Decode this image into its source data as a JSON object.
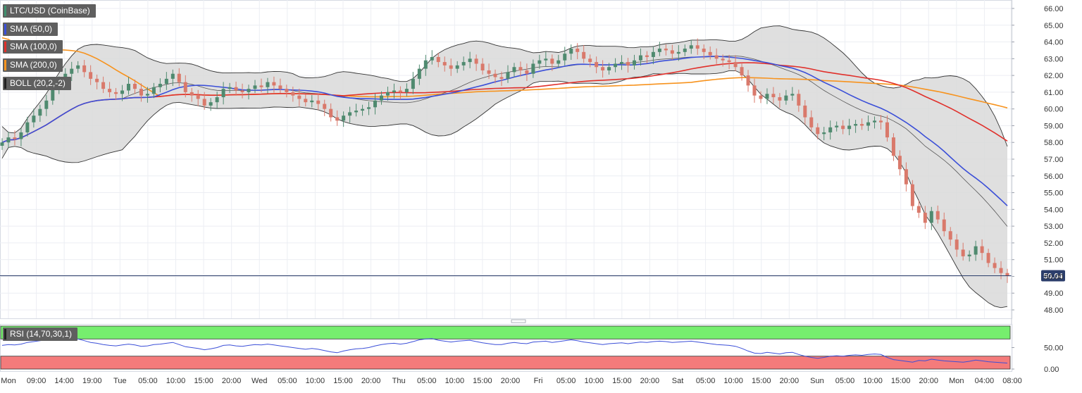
{
  "chart_data": {
    "type": "candlestick",
    "symbol": "LTC/USD (CoinBase)",
    "y_axis": {
      "min": 48,
      "max": 66,
      "ticks": [
        "66.00",
        "65.00",
        "64.00",
        "63.00",
        "62.00",
        "61.00",
        "60.00",
        "59.00",
        "58.00",
        "57.00",
        "56.00",
        "55.00",
        "54.00",
        "53.00",
        "52.00",
        "51.00",
        "50.00",
        "49.00",
        "48.00"
      ]
    },
    "x_axis": {
      "ticks": [
        "Mon",
        "09:00",
        "14:00",
        "19:00",
        "Tue",
        "05:00",
        "10:00",
        "15:00",
        "20:00",
        "Wed",
        "05:00",
        "10:00",
        "15:00",
        "20:00",
        "Thu",
        "05:00",
        "10:00",
        "15:00",
        "20:00",
        "Fri",
        "05:00",
        "10:00",
        "15:00",
        "20:00",
        "Sat",
        "05:00",
        "10:00",
        "15:00",
        "20:00",
        "Sun",
        "05:00",
        "10:00",
        "15:00",
        "20:00",
        "Mon",
        "04:00",
        "08:00"
      ]
    },
    "current_price": {
      "label": "50.04",
      "value": 50.04,
      "color": "#2c3e6b"
    },
    "legend": [
      {
        "label": "SMA (50,0)",
        "color": "#3b4fd8"
      },
      {
        "label": "SMA (100,0)",
        "color": "#e0302b"
      },
      {
        "label": "SMA (200,0)",
        "color": "#f7931e"
      },
      {
        "label": "BOLL (20,2,-2)",
        "color": "#222222"
      }
    ],
    "series": {
      "close": [
        58.0,
        58.3,
        58.2,
        58.6,
        59.2,
        59.6,
        60.0,
        60.5,
        61.2,
        61.7,
        62.1,
        62.4,
        62.6,
        62.2,
        61.8,
        61.6,
        61.2,
        61.0,
        60.9,
        61.1,
        61.5,
        61.2,
        60.8,
        60.9,
        61.3,
        61.5,
        61.8,
        62.1,
        61.6,
        61.0,
        60.8,
        60.6,
        60.2,
        60.4,
        60.7,
        61.2,
        61.3,
        61.1,
        61.0,
        61.2,
        61.4,
        61.3,
        61.6,
        61.4,
        61.2,
        61.0,
        60.8,
        60.6,
        60.4,
        60.5,
        60.3,
        60.0,
        59.5,
        59.3,
        59.6,
        59.8,
        59.9,
        60.0,
        60.1,
        60.5,
        60.8,
        61.0,
        61.1,
        61.0,
        61.2,
        61.8,
        62.4,
        62.9,
        63.1,
        62.8,
        62.6,
        62.4,
        62.6,
        62.8,
        63.0,
        62.7,
        62.3,
        62.1,
        61.9,
        61.8,
        62.2,
        62.5,
        62.3,
        62.1,
        62.7,
        62.9,
        63.0,
        62.7,
        62.9,
        63.3,
        63.6,
        63.4,
        63.0,
        62.8,
        62.5,
        62.3,
        62.5,
        62.7,
        62.8,
        62.6,
        62.9,
        63.2,
        63.1,
        63.4,
        63.6,
        63.5,
        63.3,
        63.4,
        63.6,
        63.8,
        63.6,
        63.4,
        63.2,
        63.0,
        62.9,
        62.8,
        62.5,
        62.0,
        61.4,
        60.8,
        60.6,
        60.9,
        60.7,
        60.5,
        60.8,
        60.9,
        60.2,
        59.5,
        58.9,
        58.5,
        58.6,
        58.9,
        59.0,
        58.8,
        59.0,
        59.1,
        59.0,
        59.2,
        59.3,
        59.2,
        58.3,
        57.2,
        56.4,
        55.5,
        54.2,
        53.8,
        53.2,
        53.9,
        53.4,
        52.7,
        52.2,
        51.6,
        51.2,
        51.3,
        51.8,
        51.4,
        50.8,
        50.5,
        50.2,
        50.04
      ],
      "rsi": [
        55,
        57,
        56,
        58,
        62,
        64,
        66,
        68,
        70,
        71,
        71,
        71,
        70,
        66,
        62,
        60,
        57,
        55,
        54,
        56,
        58,
        56,
        53,
        54,
        57,
        58,
        60,
        62,
        57,
        52,
        50,
        48,
        45,
        47,
        50,
        55,
        56,
        54,
        53,
        55,
        57,
        56,
        58,
        56,
        54,
        52,
        50,
        48,
        46,
        48,
        46,
        43,
        40,
        38,
        42,
        45,
        47,
        48,
        50,
        54,
        57,
        59,
        60,
        58,
        60,
        64,
        68,
        70,
        71,
        67,
        65,
        63,
        65,
        66,
        67,
        64,
        61,
        59,
        57,
        57,
        60,
        62,
        60,
        59,
        63,
        64,
        65,
        62,
        64,
        66,
        68,
        66,
        63,
        61,
        59,
        57,
        59,
        60,
        61,
        59,
        61,
        63,
        62,
        64,
        65,
        64,
        62,
        63,
        64,
        65,
        63,
        61,
        59,
        57,
        56,
        55,
        53,
        48,
        42,
        37,
        36,
        39,
        37,
        35,
        38,
        39,
        34,
        30,
        27,
        25,
        27,
        30,
        31,
        30,
        32,
        33,
        32,
        34,
        35,
        34,
        27,
        22,
        20,
        18,
        16,
        20,
        19,
        23,
        21,
        19,
        18,
        17,
        16,
        18,
        21,
        19,
        17,
        16,
        15,
        14
      ]
    },
    "rsi_panel": {
      "label": "RSI (14,70,30,1)",
      "ticks": [
        "50.00",
        "0.00"
      ],
      "overbought": 70,
      "oversold": 30
    }
  }
}
